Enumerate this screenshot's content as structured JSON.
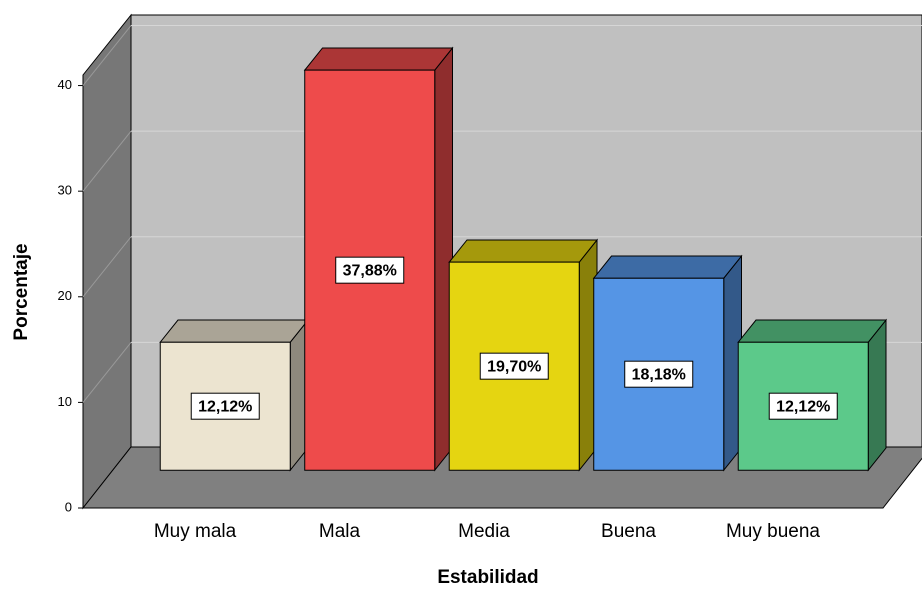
{
  "chart_data": {
    "type": "bar3d",
    "x_label": "Estabilidad",
    "y_label": "Porcentaje",
    "categories": [
      "Muy mala",
      "Mala",
      "Media",
      "Buena",
      "Muy buena"
    ],
    "values": [
      12.12,
      37.88,
      19.7,
      18.18,
      12.12
    ],
    "value_labels": [
      "12,12%",
      "37,88%",
      "19,70%",
      "18,18%",
      "12,12%"
    ],
    "colors": [
      "#ece4d0",
      "#ee4b4b",
      "#e5d511",
      "#5595e5",
      "#5cc98a"
    ],
    "ylim": [
      0,
      41
    ],
    "yticks": [
      0,
      10,
      20,
      30,
      40
    ],
    "grid": true
  }
}
